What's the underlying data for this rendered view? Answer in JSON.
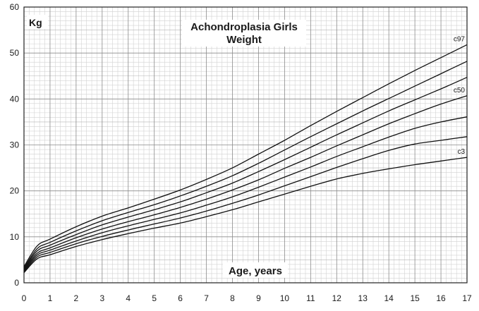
{
  "chart_data": {
    "type": "line",
    "title": "Achondroplasia Girls",
    "subtitle": "Weight",
    "xlabel": "Age, years",
    "ylabel": "Kg",
    "xlim": [
      0,
      17
    ],
    "ylim": [
      0,
      60
    ],
    "x_ticks": [
      "0",
      "1",
      "2",
      "3",
      "4",
      "5",
      "6",
      "7",
      "8",
      "9",
      "10",
      "11",
      "12",
      "13",
      "14",
      "15",
      "16",
      "17"
    ],
    "y_ticks": [
      "0",
      "10",
      "20",
      "30",
      "40",
      "50",
      "60"
    ],
    "grid": true,
    "x": [
      0,
      0.5,
      1,
      2,
      3,
      4,
      5,
      6,
      7,
      8,
      9,
      10,
      11,
      12,
      13,
      14,
      15,
      16,
      17
    ],
    "series": [
      {
        "name": "c97",
        "values": [
          3.5,
          8.0,
          9.5,
          12.2,
          14.5,
          16.3,
          18.2,
          20.2,
          22.5,
          25.0,
          28.0,
          31.0,
          34.2,
          37.3,
          40.3,
          43.3,
          46.2,
          49.0,
          51.8
        ]
      },
      {
        "name": "",
        "values": [
          3.2,
          7.4,
          8.8,
          11.3,
          13.5,
          15.3,
          17.0,
          18.9,
          21.0,
          23.3,
          26.0,
          28.9,
          31.8,
          34.6,
          37.4,
          40.1,
          42.8,
          45.5,
          48.2
        ]
      },
      {
        "name": "",
        "values": [
          3.0,
          6.9,
          8.2,
          10.5,
          12.6,
          14.3,
          15.9,
          17.6,
          19.6,
          21.7,
          24.2,
          26.8,
          29.5,
          32.2,
          34.8,
          37.4,
          39.8,
          42.2,
          44.7
        ]
      },
      {
        "name": "c50",
        "values": [
          2.8,
          6.4,
          7.6,
          9.8,
          11.7,
          13.3,
          14.8,
          16.4,
          18.2,
          20.2,
          22.4,
          24.9,
          27.3,
          29.8,
          32.2,
          34.6,
          36.8,
          38.9,
          40.7
        ]
      },
      {
        "name": "",
        "values": [
          2.6,
          6.0,
          7.1,
          9.1,
          10.9,
          12.4,
          13.8,
          15.2,
          16.9,
          18.7,
          20.8,
          23.0,
          25.2,
          27.5,
          29.6,
          31.7,
          33.6,
          35.0,
          36.1
        ]
      },
      {
        "name": "",
        "values": [
          2.4,
          5.6,
          6.6,
          8.5,
          10.1,
          11.5,
          12.8,
          14.1,
          15.6,
          17.3,
          19.1,
          21.1,
          23.1,
          25.1,
          27.0,
          28.8,
          30.2,
          31.0,
          31.8
        ]
      },
      {
        "name": "c3",
        "values": [
          2.2,
          5.2,
          6.1,
          7.9,
          9.4,
          10.7,
          11.9,
          13.0,
          14.4,
          15.9,
          17.6,
          19.3,
          21.0,
          22.6,
          23.8,
          24.8,
          25.7,
          26.5,
          27.3
        ]
      }
    ]
  }
}
